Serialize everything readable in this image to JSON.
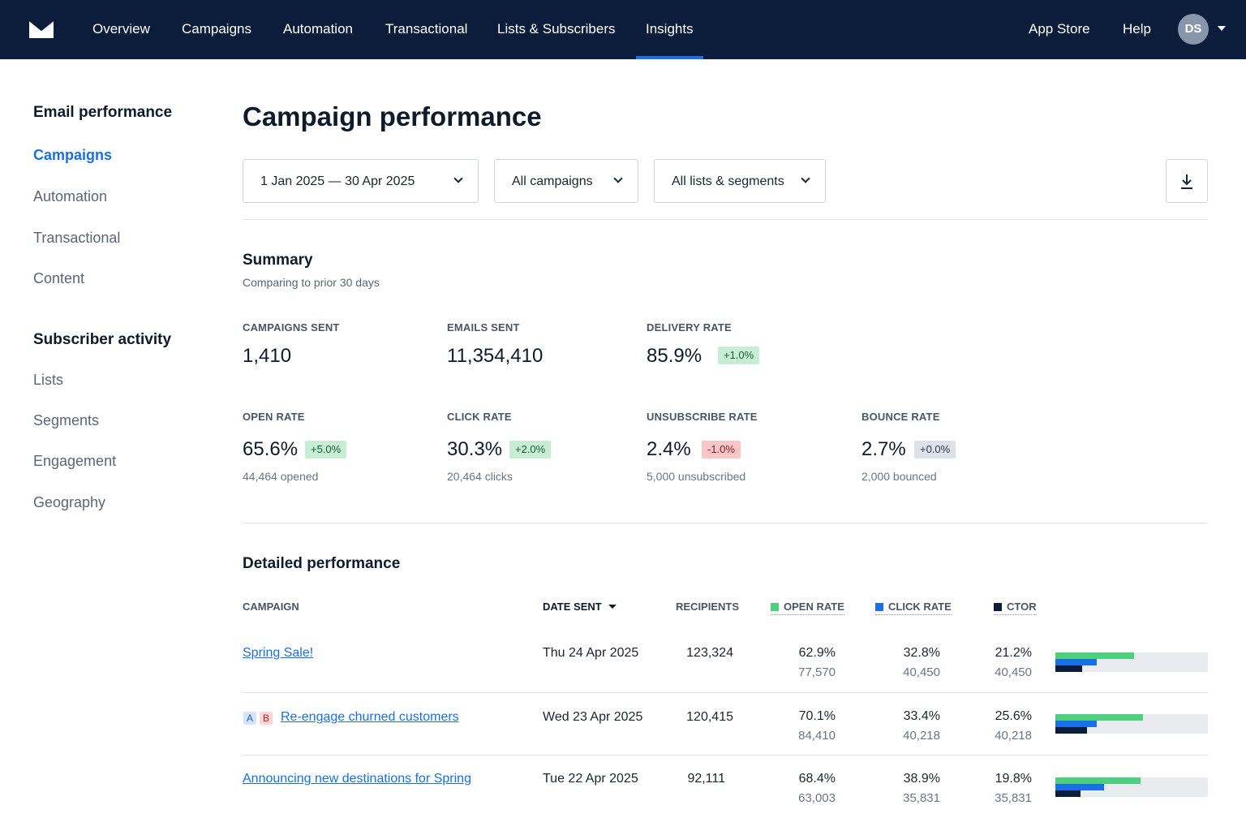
{
  "nav": {
    "items": [
      "Overview",
      "Campaigns",
      "Automation",
      "Transactional",
      "Lists & Subscribers",
      "Insights"
    ],
    "active_index": 5,
    "right": [
      "App Store",
      "Help"
    ],
    "avatar_initials": "DS"
  },
  "sidebar": {
    "sections": [
      {
        "heading": "Email performance",
        "items": [
          "Campaigns",
          "Automation",
          "Transactional",
          "Content"
        ],
        "active_index": 0
      },
      {
        "heading": "Subscriber activity",
        "items": [
          "Lists",
          "Segments",
          "Engagement",
          "Geography"
        ]
      }
    ]
  },
  "page": {
    "title": "Campaign performance",
    "filters": [
      "1 Jan 2025 — 30 Apr 2025",
      "All campaigns",
      "All lists & segments"
    ]
  },
  "summary": {
    "title": "Summary",
    "subtitle": "Comparing to prior 30 days",
    "metrics": [
      {
        "label": "CAMPAIGNS SENT",
        "value": "1,410"
      },
      {
        "label": "EMAILS SENT",
        "value": "11,354,410"
      },
      {
        "label": "DELIVERY RATE",
        "value": "85.9%",
        "delta": "+1.0%"
      },
      {
        "label": "OPEN RATE",
        "value": "65.6%",
        "delta": "+5.0%",
        "sub": "44,464 opened"
      },
      {
        "label": "CLICK RATE",
        "value": "30.3%",
        "delta": "+2.0%",
        "sub": "20,464 clicks"
      },
      {
        "label": "UNSUBSCRIBE RATE",
        "value": "2.4%",
        "delta": "-1.0%",
        "sub": "5,000 unsubscribed"
      },
      {
        "label": "BOUNCE RATE",
        "value": "2.7%",
        "delta": "+0.0%",
        "sub": "2,000 bounced"
      }
    ]
  },
  "detailed": {
    "title": "Detailed performance",
    "columns": [
      "CAMPAIGN",
      "DATE SENT",
      "RECIPIENTS",
      "OPEN RATE",
      "CLICK RATE",
      "CTOR"
    ],
    "legend_colors": {
      "open": "#4ccf7e",
      "click": "#1a6fe6",
      "ctor": "#0b1d3a"
    },
    "ab_labels": [
      "A",
      "B"
    ],
    "rows": [
      {
        "campaign": "Spring Sale!",
        "ab": false,
        "date": "Thu 24 Apr 2025",
        "recipients": "123,324",
        "open_rate": "62.9%",
        "opened": "77,570",
        "click_rate": "32.8%",
        "clicks": "40,450",
        "ctor": "21.2%",
        "ctor_count": "40,450",
        "open_pct": 62.9,
        "click_pct": 32.8,
        "ctor_pct": 21.2
      },
      {
        "campaign": "Re-engage churned customers",
        "ab": true,
        "date": "Wed 23 Apr 2025",
        "recipients": "120,415",
        "open_rate": "70.1%",
        "opened": "84,410",
        "click_rate": "33.4%",
        "clicks": "40,218",
        "ctor": "25.6%",
        "ctor_count": "40,218",
        "open_pct": 70.1,
        "click_pct": 33.4,
        "ctor_pct": 25.6
      },
      {
        "campaign": "Announcing new destinations for Spring",
        "ab": false,
        "date": "Tue 22 Apr 2025",
        "recipients": "92,111",
        "open_rate": "68.4%",
        "opened": "63,003",
        "click_rate": "38.9%",
        "clicks": "35,831",
        "ctor": "19.8%",
        "ctor_count": "35,831",
        "open_pct": 68.4,
        "click_pct": 38.9,
        "ctor_pct": 19.8
      }
    ]
  }
}
